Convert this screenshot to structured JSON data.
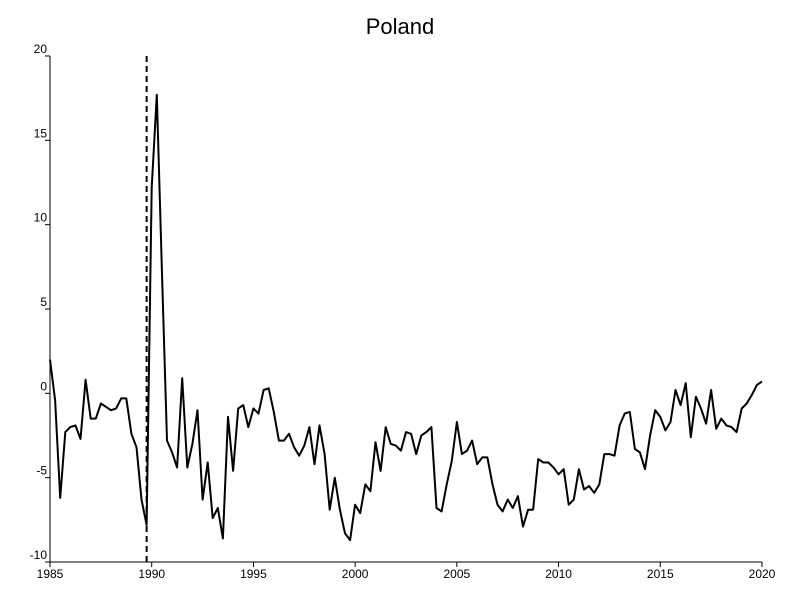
{
  "chart_data": {
    "type": "line",
    "title": "Poland",
    "xlabel": "",
    "ylabel": "",
    "xlim": [
      1985,
      2020
    ],
    "ylim": [
      -10,
      20
    ],
    "x_ticks": [
      1985,
      1990,
      1995,
      2000,
      2005,
      2010,
      2015,
      2020
    ],
    "y_ticks": [
      -10,
      -5,
      0,
      5,
      10,
      15,
      20
    ],
    "grid": false,
    "legend": "none",
    "line_color": "#000000",
    "vertical_marker": {
      "x": 1989.75,
      "style": "dashed"
    },
    "series": [
      {
        "x": [
          1985.0,
          1985.25,
          1985.5,
          1985.75,
          1986.0,
          1986.25,
          1986.5,
          1986.75,
          1987.0,
          1987.25,
          1987.5,
          1987.75,
          1988.0,
          1988.25,
          1988.5,
          1988.75,
          1989.0,
          1989.25,
          1989.5,
          1989.75,
          1990.0,
          1990.25,
          1990.5,
          1990.75,
          1991.0,
          1991.25,
          1991.5,
          1991.75,
          1992.0,
          1992.25,
          1992.5,
          1992.75,
          1993.0,
          1993.25,
          1993.5,
          1993.75,
          1994.0,
          1994.25,
          1994.5,
          1994.75,
          1995.0,
          1995.25,
          1995.5,
          1995.75,
          1996.0,
          1996.25,
          1996.5,
          1996.75,
          1997.0,
          1997.25,
          1997.5,
          1997.75,
          1998.0,
          1998.25,
          1998.5,
          1998.75,
          1999.0,
          1999.25,
          1999.5,
          1999.75,
          2000.0,
          2000.25,
          2000.5,
          2000.75,
          2001.0,
          2001.25,
          2001.5,
          2001.75,
          2002.0,
          2002.25,
          2002.5,
          2002.75,
          2003.0,
          2003.25,
          2003.5,
          2003.75,
          2004.0,
          2004.25,
          2004.5,
          2004.75,
          2005.0,
          2005.25,
          2005.5,
          2005.75,
          2006.0,
          2006.25,
          2006.5,
          2006.75,
          2007.0,
          2007.25,
          2007.5,
          2007.75,
          2008.0,
          2008.25,
          2008.5,
          2008.75,
          2009.0,
          2009.25,
          2009.5,
          2009.75,
          2010.0,
          2010.25,
          2010.5,
          2010.75,
          2011.0,
          2011.25,
          2011.5,
          2011.75,
          2012.0,
          2012.25,
          2012.5,
          2012.75,
          2013.0,
          2013.25,
          2013.5,
          2013.75,
          2014.0,
          2014.25,
          2014.5,
          2014.75,
          2015.0,
          2015.25,
          2015.5,
          2015.75,
          2016.0,
          2016.25,
          2016.5,
          2016.75,
          2017.0,
          2017.25,
          2017.5,
          2017.75,
          2018.0,
          2018.25,
          2018.5,
          2018.75,
          2019.0,
          2019.25,
          2019.5,
          2019.75,
          2020.0
        ],
        "values": [
          2.0,
          -0.4,
          -6.2,
          -2.3,
          -2.0,
          -1.9,
          -2.7,
          0.8,
          -1.5,
          -1.5,
          -0.6,
          -0.8,
          -1.0,
          -0.9,
          -0.3,
          -0.3,
          -2.4,
          -3.2,
          -6.3,
          -7.8,
          12.2,
          17.7,
          7.3,
          -2.8,
          -3.5,
          -4.4,
          0.9,
          -4.4,
          -3.0,
          -1.0,
          -6.3,
          -4.1,
          -7.4,
          -6.8,
          -8.6,
          -1.4,
          -4.6,
          -0.9,
          -0.7,
          -2.0,
          -0.9,
          -1.2,
          0.2,
          0.3,
          -1.1,
          -2.8,
          -2.8,
          -2.4,
          -3.2,
          -3.7,
          -3.1,
          -2.0,
          -4.2,
          -1.9,
          -3.6,
          -6.9,
          -5.0,
          -6.9,
          -8.3,
          -8.7,
          -6.6,
          -7.1,
          -5.4,
          -5.8,
          -2.9,
          -4.6,
          -2.0,
          -3.0,
          -3.1,
          -3.4,
          -2.3,
          -2.4,
          -3.6,
          -2.5,
          -2.3,
          -2.0,
          -6.8,
          -7.0,
          -5.4,
          -4.0,
          -1.7,
          -3.6,
          -3.4,
          -2.8,
          -4.2,
          -3.8,
          -3.8,
          -5.4,
          -6.6,
          -7.0,
          -6.3,
          -6.8,
          -6.1,
          -7.9,
          -6.9,
          -6.9,
          -3.9,
          -4.1,
          -4.1,
          -4.4,
          -4.8,
          -4.5,
          -6.6,
          -6.3,
          -4.5,
          -5.7,
          -5.5,
          -5.9,
          -5.4,
          -3.6,
          -3.6,
          -3.7,
          -1.9,
          -1.2,
          -1.1,
          -3.3,
          -3.5,
          -4.5,
          -2.5,
          -1.0,
          -1.4,
          -2.2,
          -1.7,
          0.2,
          -0.7,
          0.6,
          -2.6,
          -0.2,
          -0.9,
          -1.8,
          0.2,
          -2.1,
          -1.5,
          -1.9,
          -2.0,
          -2.3,
          -0.9,
          -0.6,
          -0.1,
          0.5,
          0.7
        ]
      }
    ]
  }
}
